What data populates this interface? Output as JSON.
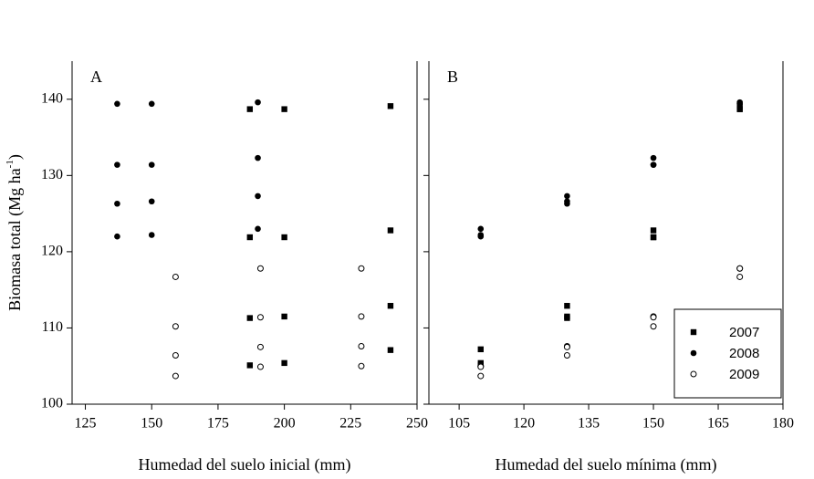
{
  "chart_data": [
    {
      "type": "scatter",
      "panel_label": "A",
      "x_label": "Humedad del suelo inicial (mm)",
      "y_label": {
        "text": "Biomasa total (Mg ha",
        "sup": "-1",
        "end": ")"
      },
      "xlim": [
        120,
        250
      ],
      "xticks": [
        125,
        150,
        175,
        200,
        225,
        250
      ],
      "ylim": [
        100,
        145
      ],
      "yticks": [
        100,
        110,
        120,
        130,
        140
      ],
      "series": [
        {
          "marker": "square",
          "color": "#000000",
          "x": [
            187,
            187,
            187,
            187,
            200,
            200,
            200,
            200,
            240,
            240,
            240,
            240
          ],
          "values": [
            138.7,
            121.9,
            111.3,
            105.1,
            138.7,
            121.9,
            111.5,
            105.4,
            139.1,
            122.8,
            112.9,
            107.1
          ]
        },
        {
          "marker": "circle",
          "color": "#000000",
          "x": [
            137,
            137,
            137,
            137,
            150,
            150,
            150,
            150,
            190,
            190,
            190,
            190
          ],
          "values": [
            139.4,
            131.4,
            126.3,
            122.0,
            139.4,
            131.4,
            126.6,
            122.2,
            139.6,
            132.3,
            127.3,
            123.0
          ]
        },
        {
          "marker": "open-circle",
          "color": "#000000",
          "x": [
            159,
            159,
            159,
            159,
            191,
            191,
            191,
            191,
            229,
            229,
            229,
            229
          ],
          "values": [
            116.7,
            110.2,
            106.4,
            103.7,
            117.8,
            111.4,
            107.5,
            104.9,
            117.8,
            111.5,
            107.6,
            105.0
          ]
        }
      ]
    },
    {
      "type": "scatter",
      "panel_label": "B",
      "x_label": "Humedad del suelo mínima (mm)",
      "xlim": [
        98,
        180
      ],
      "xticks": [
        105,
        120,
        135,
        150,
        165,
        180
      ],
      "ylim": [
        100,
        145
      ],
      "yticks": [
        100,
        110,
        120,
        130,
        140
      ],
      "show_ytick_labels": false,
      "legend": "lower right",
      "series": [
        {
          "name": "2007",
          "marker": "square",
          "color": "#000000",
          "x": [
            110,
            110,
            110,
            130,
            130,
            130,
            150,
            150,
            150,
            170,
            170,
            170
          ],
          "values": [
            107.2,
            105.4,
            105.1,
            112.9,
            111.5,
            111.3,
            122.8,
            121.9,
            121.9,
            139.1,
            138.7,
            138.7
          ]
        },
        {
          "name": "2008",
          "marker": "circle",
          "color": "#000000",
          "x": [
            110,
            110,
            110,
            130,
            130,
            130,
            150,
            150,
            150,
            170,
            170,
            170
          ],
          "values": [
            123.0,
            122.2,
            122.0,
            127.3,
            126.6,
            126.3,
            132.3,
            131.4,
            131.4,
            139.6,
            139.4,
            139.4
          ]
        },
        {
          "name": "2009",
          "marker": "open-circle",
          "color": "#000000",
          "x": [
            110,
            110,
            110,
            130,
            130,
            130,
            150,
            150,
            150,
            170,
            170,
            170
          ],
          "values": [
            105.0,
            104.9,
            103.7,
            107.6,
            107.5,
            106.4,
            111.5,
            111.4,
            110.2,
            117.8,
            117.8,
            116.7
          ]
        }
      ]
    }
  ]
}
